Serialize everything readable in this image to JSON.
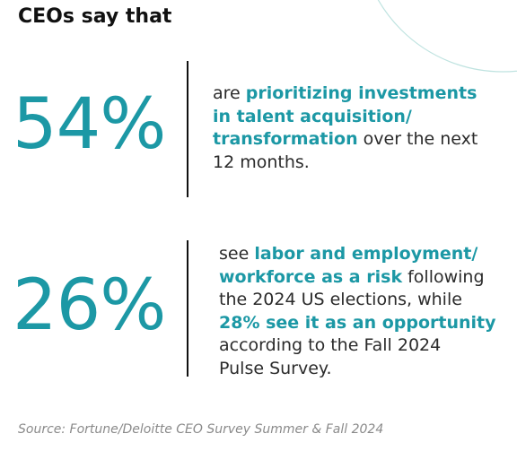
{
  "title": "CEOs say that",
  "stats": [
    {
      "figure": "54%",
      "lines": [
        [
          {
            "text": "are ",
            "highlight": false
          },
          {
            "text": "prioritizing investments",
            "highlight": true
          }
        ],
        [
          {
            "text": "in talent acquisition/",
            "highlight": true
          }
        ],
        [
          {
            "text": "transformation",
            "highlight": true
          },
          {
            "text": " over the next",
            "highlight": false
          }
        ],
        [
          {
            "text": "12 months.",
            "highlight": false
          }
        ]
      ]
    },
    {
      "figure": "26%",
      "lines": [
        [
          {
            "text": "see ",
            "highlight": false
          },
          {
            "text": "labor and employment/",
            "highlight": true
          }
        ],
        [
          {
            "text": "workforce as a risk",
            "highlight": true
          },
          {
            "text": " following",
            "highlight": false
          }
        ],
        [
          {
            "text": "the 2024 US elections, while",
            "highlight": false
          }
        ],
        [
          {
            "text": "28% see it as an opportunity",
            "highlight": true
          }
        ],
        [
          {
            "text": "according to the Fall 2024",
            "highlight": false
          }
        ],
        [
          {
            "text": "Pulse Survey.",
            "highlight": false
          }
        ]
      ]
    }
  ],
  "source": "Source: Fortune/Deloitte CEO Survey Summer & Fall 2024"
}
